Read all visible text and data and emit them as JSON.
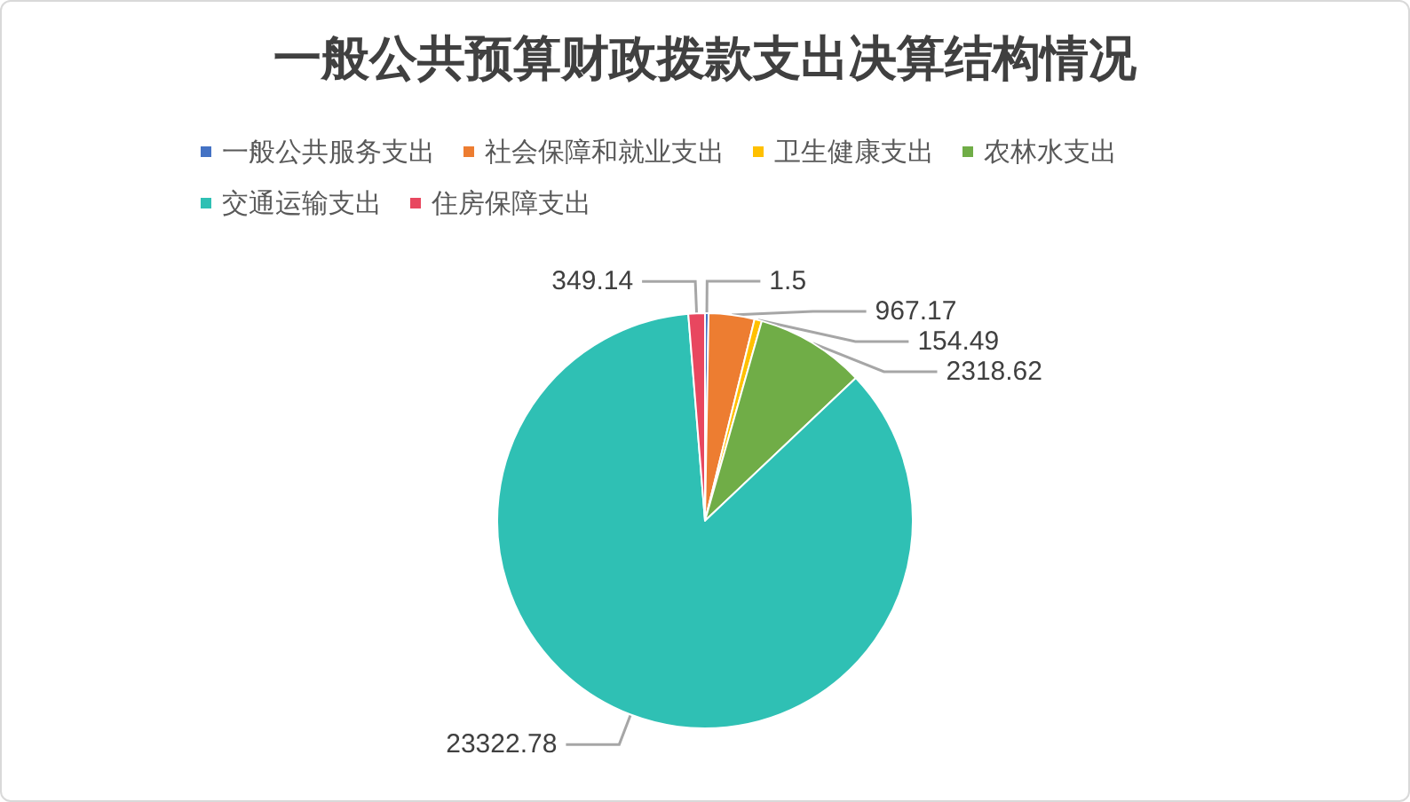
{
  "chart_data": {
    "type": "pie",
    "title": "一般公共预算财政拨款支出决算结构情况",
    "categories": [
      "一般公共服务支出",
      "社会保障和就业支出",
      "卫生健康支出",
      "农林水支出",
      "交通运输支出",
      "住房保障支出"
    ],
    "values": [
      1.5,
      967.17,
      154.49,
      2318.62,
      23322.78,
      349.14
    ],
    "colors": [
      "#4472c4",
      "#ed7d31",
      "#ffc000",
      "#70ad47",
      "#2fc0b4",
      "#e8475f"
    ],
    "data_labels": true,
    "legend": "top"
  }
}
